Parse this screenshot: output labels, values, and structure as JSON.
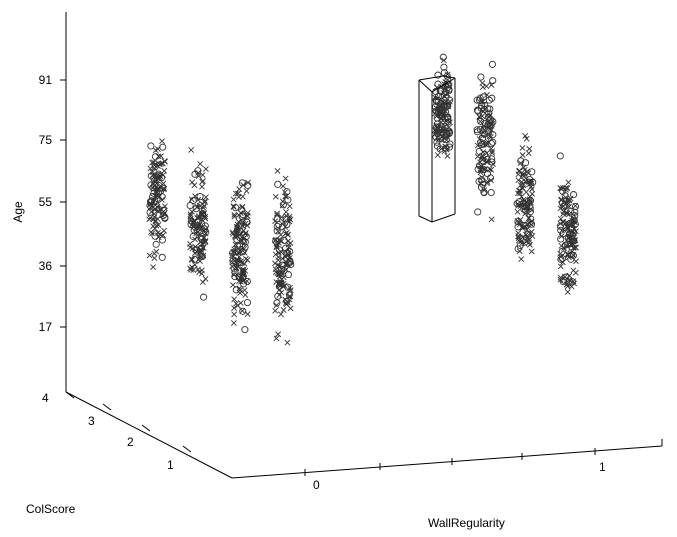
{
  "chart_data": {
    "type": "scatter",
    "projection": "3d",
    "axis_labels": {
      "z": "Age",
      "y": "ColScore",
      "x": "WallRegularity"
    },
    "z_ticks": [
      "17",
      "36",
      "55",
      "75",
      "91"
    ],
    "y_ticks": [
      "1",
      "2",
      "3",
      "4"
    ],
    "x_ticks": [
      "0",
      "1"
    ],
    "grid": false,
    "marker_types": [
      "x",
      "o"
    ],
    "colors": {
      "markers": "#333333",
      "axes": "#000000",
      "background": "#ffffff"
    },
    "column_groups": [
      {
        "wallregularity": 0,
        "colscore": 4,
        "age_range": [
          28,
          80
        ]
      },
      {
        "wallregularity": 0,
        "colscore": 3,
        "age_range": [
          19,
          78
        ]
      },
      {
        "wallregularity": 0,
        "colscore": 2,
        "age_range": [
          12,
          75
        ]
      },
      {
        "wallregularity": 0,
        "colscore": 1,
        "age_range": [
          10,
          75
        ]
      },
      {
        "wallregularity": 1,
        "colscore": 4,
        "age_range": [
          40,
          92
        ]
      },
      {
        "wallregularity": 1,
        "colscore": 3,
        "age_range": [
          28,
          90
        ]
      },
      {
        "wallregularity": 1,
        "colscore": 2,
        "age_range": [
          22,
          73
        ]
      },
      {
        "wallregularity": 1,
        "colscore": 1,
        "age_range": [
          14,
          72
        ]
      }
    ],
    "highlight_box": {
      "wallregularity": 1,
      "colscore": 4,
      "age_range": [
        55,
        91
      ]
    }
  }
}
